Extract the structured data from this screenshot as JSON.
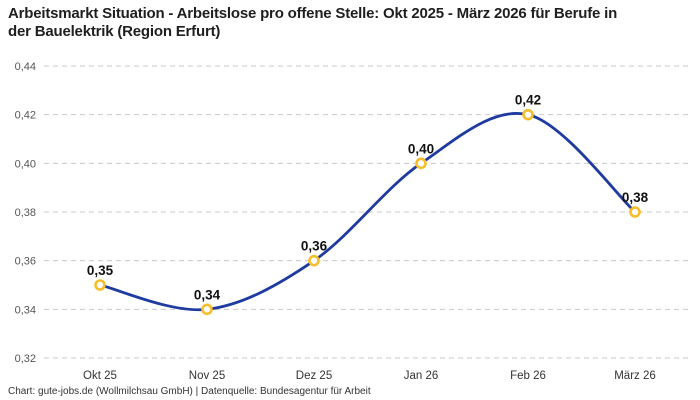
{
  "title": "Arbeitsmarkt Situation - Arbeitslose pro offene Stelle: Okt 2025 - März 2026 für Berufe in der Bauelektrik (Region Erfurt)",
  "footer": "Chart: gute-jobs.de (Wollmilchsau GmbH) | Datenquelle: Bundesagentur für Arbeit",
  "chart_data": {
    "type": "line",
    "title": "Arbeitsmarkt Situation - Arbeitslose pro offene Stelle: Okt 2025 - März 2026 für Berufe in der Bauelektrik (Region Erfurt)",
    "categories": [
      "Okt 25",
      "Nov 25",
      "Dez 25",
      "Jan 26",
      "Feb 26",
      "März 26"
    ],
    "values": [
      0.35,
      0.34,
      0.36,
      0.4,
      0.42,
      0.38
    ],
    "point_labels": [
      "0,35",
      "0,34",
      "0,36",
      "0,40",
      "0,42",
      "0,38"
    ],
    "y_ticks": [
      {
        "value": 0.32,
        "label": "0,32"
      },
      {
        "value": 0.34,
        "label": "0,34"
      },
      {
        "value": 0.36,
        "label": "0,36"
      },
      {
        "value": 0.38,
        "label": "0,38"
      },
      {
        "value": 0.4,
        "label": "0,40"
      },
      {
        "value": 0.42,
        "label": "0,42"
      },
      {
        "value": 0.44,
        "label": "0,44"
      }
    ],
    "ylim": [
      0.32,
      0.44
    ],
    "xlabel": "",
    "ylabel": "",
    "grid": "horizontal-dashed",
    "legend": "none",
    "curve": "smooth",
    "colors": {
      "line": "#1F3BA0",
      "marker_ring": "#F6BE2B",
      "marker_fill": "#FFFFFF",
      "point_label": "#111111",
      "grid": "#C9C9C9",
      "y_tick_label": "#555555",
      "x_tick_label": "#333333"
    }
  }
}
